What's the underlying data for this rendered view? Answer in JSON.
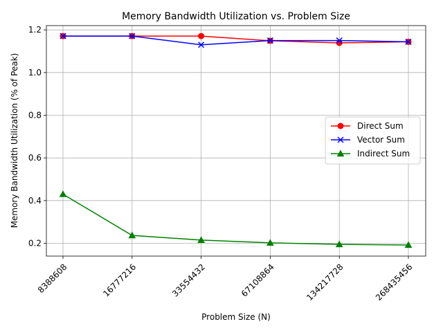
{
  "chart_data": {
    "type": "line",
    "title": "Memory Bandwidth Utilization vs. Problem Size",
    "xlabel": "Problem Size (N)",
    "ylabel": "Memory Bandwidth Utilization (% of Peak)",
    "categories": [
      "8388608",
      "16777216",
      "33554432",
      "67108864",
      "134217728",
      "268435456"
    ],
    "ylim": [
      0.14,
      1.22
    ],
    "yticks": [
      0.2,
      0.4,
      0.6,
      0.8,
      1.0,
      1.2
    ],
    "ytick_labels": [
      "0.2",
      "0.4",
      "0.6",
      "0.8",
      "1.0",
      "1.2"
    ],
    "grid": true,
    "legend_position": "right",
    "series": [
      {
        "name": "Direct Sum",
        "color": "#ff0000",
        "marker": "circle",
        "values": [
          1.171,
          1.171,
          1.171,
          1.149,
          1.139,
          1.144
        ]
      },
      {
        "name": "Vector Sum",
        "color": "#0000ff",
        "marker": "x",
        "values": [
          1.171,
          1.171,
          1.13,
          1.15,
          1.15,
          1.144
        ]
      },
      {
        "name": "Indirect Sum",
        "color": "#008000",
        "marker": "triangle",
        "values": [
          0.43,
          0.237,
          0.215,
          0.202,
          0.195,
          0.192
        ]
      }
    ]
  }
}
